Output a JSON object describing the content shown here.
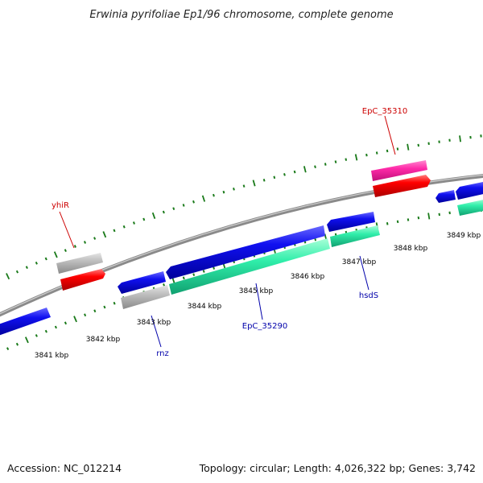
{
  "title": "Erwinia pyrifoliae Ep1/96 chromosome, complete genome",
  "footer": {
    "accession": "Accession: NC_012214",
    "topology": "Topology: circular; Length: 4,026,322 bp; Genes: 3,742"
  },
  "colors": {
    "backbone": "#8a8a8a",
    "tick": "#1a7a1a",
    "forward_gene": "#0000ee",
    "rna_red": "#ff0000",
    "pseudo_grey": "#b4b4b4",
    "pink": "#ff22aa",
    "teal": "#22eeaa",
    "label_red": "#cc0000",
    "label_blue": "#0000aa"
  },
  "tick_labels": [
    "3841 kbp",
    "3842 kbp",
    "3843 kbp",
    "3844 kbp",
    "3845 kbp",
    "3846 kbp",
    "3847 kbp",
    "3848 kbp",
    "3849 kbp"
  ],
  "gene_labels": [
    {
      "text": "yhiR",
      "color_key": "label_red"
    },
    {
      "text": "EpC_35310",
      "color_key": "label_red"
    },
    {
      "text": "rnz",
      "color_key": "label_blue"
    },
    {
      "text": "EpC_35290",
      "color_key": "label_blue"
    },
    {
      "text": "hsdS",
      "color_key": "label_blue"
    }
  ]
}
